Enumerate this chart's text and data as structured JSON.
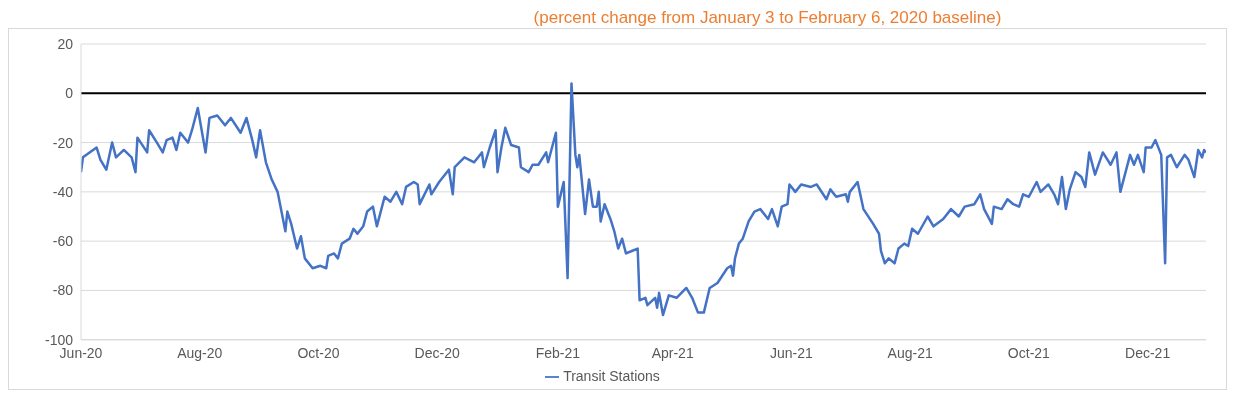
{
  "chart_data": {
    "type": "line",
    "subtitle": "(percent change from January 3 to February 6, 2020 baseline)",
    "x": [
      "2020-06-01",
      "2020-06-02",
      "2020-06-09",
      "2020-06-11",
      "2020-06-14",
      "2020-06-17",
      "2020-06-19",
      "2020-06-23",
      "2020-06-27",
      "2020-06-29",
      "2020-06-30",
      "2020-07-05",
      "2020-07-06",
      "2020-07-10",
      "2020-07-13",
      "2020-07-15",
      "2020-07-18",
      "2020-07-20",
      "2020-07-22",
      "2020-07-26",
      "2020-07-28",
      "2020-07-31",
      "2020-08-02",
      "2020-08-04",
      "2020-08-06",
      "2020-08-10",
      "2020-08-14",
      "2020-08-17",
      "2020-08-22",
      "2020-08-25",
      "2020-08-28",
      "2020-08-30",
      "2020-09-01",
      "2020-09-04",
      "2020-09-07",
      "2020-09-10",
      "2020-09-14",
      "2020-09-15",
      "2020-09-17",
      "2020-09-20",
      "2020-09-22",
      "2020-09-24",
      "2020-09-28",
      "2020-10-02",
      "2020-10-05",
      "2020-10-06",
      "2020-10-09",
      "2020-10-11",
      "2020-10-13",
      "2020-10-17",
      "2020-10-19",
      "2020-10-21",
      "2020-10-24",
      "2020-10-26",
      "2020-10-29",
      "2020-10-31",
      "2020-11-02",
      "2020-11-04",
      "2020-11-07",
      "2020-11-10",
      "2020-11-13",
      "2020-11-15",
      "2020-11-19",
      "2020-11-21",
      "2020-11-22",
      "2020-11-27",
      "2020-11-28",
      "2020-12-02",
      "2020-12-07",
      "2020-12-09",
      "2020-12-10",
      "2020-12-15",
      "2020-12-20",
      "2020-12-24",
      "2020-12-25",
      "2020-12-28",
      "2020-12-31",
      "2021-01-01",
      "2021-01-03",
      "2021-01-05",
      "2021-01-08",
      "2021-01-12",
      "2021-01-13",
      "2021-01-17",
      "2021-01-19",
      "2021-01-22",
      "2021-01-26",
      "2021-01-27",
      "2021-01-31",
      "2021-02-01",
      "2021-02-04",
      "2021-02-06",
      "2021-02-08",
      "2021-02-10",
      "2021-02-11",
      "2021-02-12",
      "2021-02-15",
      "2021-02-17",
      "2021-02-19",
      "2021-02-21",
      "2021-02-22",
      "2021-02-23",
      "2021-02-25",
      "2021-02-28",
      "2021-03-02",
      "2021-03-04",
      "2021-03-06",
      "2021-03-08",
      "2021-03-11",
      "2021-03-14",
      "2021-03-15",
      "2021-03-18",
      "2021-03-19",
      "2021-03-23",
      "2021-03-24",
      "2021-03-25",
      "2021-03-27",
      "2021-03-30",
      "2021-04-03",
      "2021-04-08",
      "2021-04-11",
      "2021-04-14",
      "2021-04-17",
      "2021-04-20",
      "2021-04-24",
      "2021-04-29",
      "2021-05-01",
      "2021-05-02",
      "2021-05-03",
      "2021-05-05",
      "2021-05-07",
      "2021-05-10",
      "2021-05-13",
      "2021-05-16",
      "2021-05-20",
      "2021-05-22",
      "2021-05-25",
      "2021-05-27",
      "2021-05-30",
      "2021-05-31",
      "2021-06-03",
      "2021-06-06",
      "2021-06-11",
      "2021-06-14",
      "2021-06-19",
      "2021-06-21",
      "2021-06-24",
      "2021-06-29",
      "2021-06-30",
      "2021-07-01",
      "2021-07-05",
      "2021-07-08",
      "2021-07-13",
      "2021-07-16",
      "2021-07-17",
      "2021-07-19",
      "2021-07-21",
      "2021-07-24",
      "2021-07-26",
      "2021-07-29",
      "2021-07-31",
      "2021-08-02",
      "2021-08-05",
      "2021-08-10",
      "2021-08-13",
      "2021-08-18",
      "2021-08-22",
      "2021-08-26",
      "2021-08-29",
      "2021-09-03",
      "2021-09-06",
      "2021-09-08",
      "2021-09-12",
      "2021-09-13",
      "2021-09-17",
      "2021-09-20",
      "2021-09-23",
      "2021-09-26",
      "2021-09-28",
      "2021-10-01",
      "2021-10-05",
      "2021-10-07",
      "2021-10-11",
      "2021-10-14",
      "2021-10-16",
      "2021-10-18",
      "2021-10-20",
      "2021-10-22",
      "2021-10-25",
      "2021-10-28",
      "2021-10-30",
      "2021-11-01",
      "2021-11-04",
      "2021-11-08",
      "2021-11-12",
      "2021-11-15",
      "2021-11-17",
      "2021-11-22",
      "2021-11-24",
      "2021-11-26",
      "2021-11-29",
      "2021-11-30",
      "2021-12-03",
      "2021-12-05",
      "2021-12-08",
      "2021-12-10",
      "2021-12-11",
      "2021-12-13",
      "2021-12-16",
      "2021-12-20",
      "2021-12-22",
      "2021-12-25",
      "2021-12-27",
      "2021-12-29",
      "2021-12-30",
      "2021-12-31"
    ],
    "series": [
      {
        "name": "Transit Stations",
        "color": "#4472c4",
        "values": [
          -32,
          -26,
          -22,
          -27,
          -31,
          -20,
          -26,
          -23,
          -26,
          -32,
          -18,
          -24,
          -15,
          -20,
          -24,
          -19,
          -18,
          -23,
          -16,
          -20,
          -15,
          -6,
          -15,
          -24,
          -10,
          -9,
          -13,
          -10,
          -16,
          -10,
          -19,
          -26,
          -15,
          -28,
          -35,
          -40,
          -56,
          -48,
          -53,
          -63,
          -58,
          -67,
          -71,
          -70,
          -71,
          -66,
          -65,
          -67,
          -61,
          -59,
          -55,
          -57,
          -54,
          -48,
          -46,
          -54,
          -48,
          -42,
          -44,
          -40,
          -45,
          -38,
          -36,
          -37,
          -45,
          -37,
          -41,
          -36,
          -31,
          -41,
          -30,
          -26,
          -28,
          -24,
          -30,
          -22,
          -15,
          -32,
          -22,
          -14,
          -21,
          -22,
          -30,
          -32,
          -29,
          -29,
          -24,
          -28,
          -16,
          -46,
          -36,
          -75,
          4,
          -25,
          -30,
          -25,
          -49,
          -35,
          -46,
          -46,
          -40,
          -52,
          -45,
          -51,
          -56,
          -63,
          -59,
          -65,
          -64,
          -63,
          -84,
          -83,
          -86,
          -83,
          -87,
          -81,
          -90,
          -82,
          -83,
          -79,
          -83,
          -89,
          -89,
          -79,
          -77,
          -71,
          -70,
          -74,
          -67,
          -61,
          -59,
          -52,
          -48,
          -47,
          -51,
          -47,
          -54,
          -46,
          -45,
          -37,
          -40,
          -37,
          -38,
          -37,
          -43,
          -39,
          -42,
          -41,
          -44,
          -40,
          -36,
          -47,
          -53,
          -57,
          -64,
          -69,
          -67,
          -69,
          -63,
          -61,
          -62,
          -55,
          -57,
          -50,
          -54,
          -51,
          -47,
          -50,
          -46,
          -45,
          -41,
          -47,
          -53,
          -46,
          -47,
          -43,
          -45,
          -46,
          -41,
          -42,
          -36,
          -40,
          -37,
          -41,
          -45,
          -34,
          -47,
          -39,
          -32,
          -34,
          -38,
          -24,
          -33,
          -24,
          -29,
          -24,
          -40,
          -25,
          -29,
          -25,
          -32,
          -22,
          -22,
          -19,
          -25,
          -69,
          -26,
          -25,
          -30,
          -25,
          -27,
          -34,
          -23,
          -26,
          -23,
          -24
        ]
      }
    ],
    "xlim": [
      "2020-06-01",
      "2021-12-31"
    ],
    "xticks": [
      {
        "value": "2020-06-01",
        "label": "Jun-20"
      },
      {
        "value": "2020-08-01",
        "label": "Aug-20"
      },
      {
        "value": "2020-10-01",
        "label": "Oct-20"
      },
      {
        "value": "2020-12-01",
        "label": "Dec-20"
      },
      {
        "value": "2021-02-01",
        "label": "Feb-21"
      },
      {
        "value": "2021-04-01",
        "label": "Apr-21"
      },
      {
        "value": "2021-06-01",
        "label": "Jun-21"
      },
      {
        "value": "2021-08-01",
        "label": "Aug-21"
      },
      {
        "value": "2021-10-01",
        "label": "Oct-21"
      },
      {
        "value": "2021-12-01",
        "label": "Dec-21"
      }
    ],
    "ylim": [
      -100,
      20
    ],
    "yticks": [
      -100,
      -80,
      -60,
      -40,
      -20,
      0,
      20
    ],
    "ref_lines": [
      {
        "axis": "y",
        "value": 0,
        "color": "#000000"
      }
    ],
    "grid": "y",
    "legend": "bottom",
    "marker": "none",
    "line_style": "solid"
  }
}
